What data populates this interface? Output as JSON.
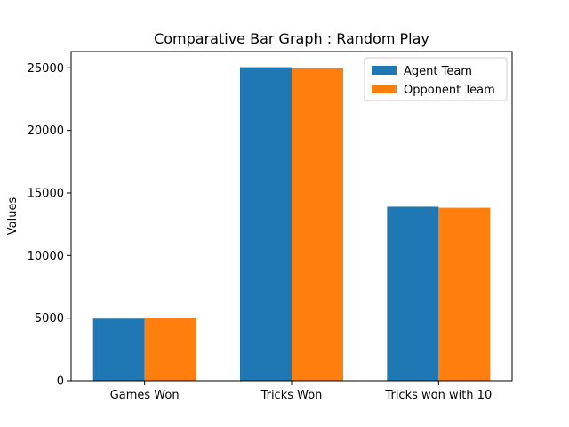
{
  "chart_data": {
    "type": "bar",
    "title": "Comparative Bar Graph : Random Play",
    "xlabel": "",
    "ylabel": "Values",
    "categories": [
      "Games Won",
      "Tricks Won",
      "Tricks won with 10"
    ],
    "series": [
      {
        "name": "Agent Team",
        "values": [
          4960,
          25050,
          13900
        ],
        "color": "#1f77b4"
      },
      {
        "name": "Opponent Team",
        "values": [
          5040,
          24950,
          13820
        ],
        "color": "#ff7f0e"
      }
    ],
    "ylim": [
      0,
      26300
    ],
    "yticks": [
      0,
      5000,
      10000,
      15000,
      20000,
      25000
    ],
    "grid": false,
    "legend_position": "top-right"
  }
}
